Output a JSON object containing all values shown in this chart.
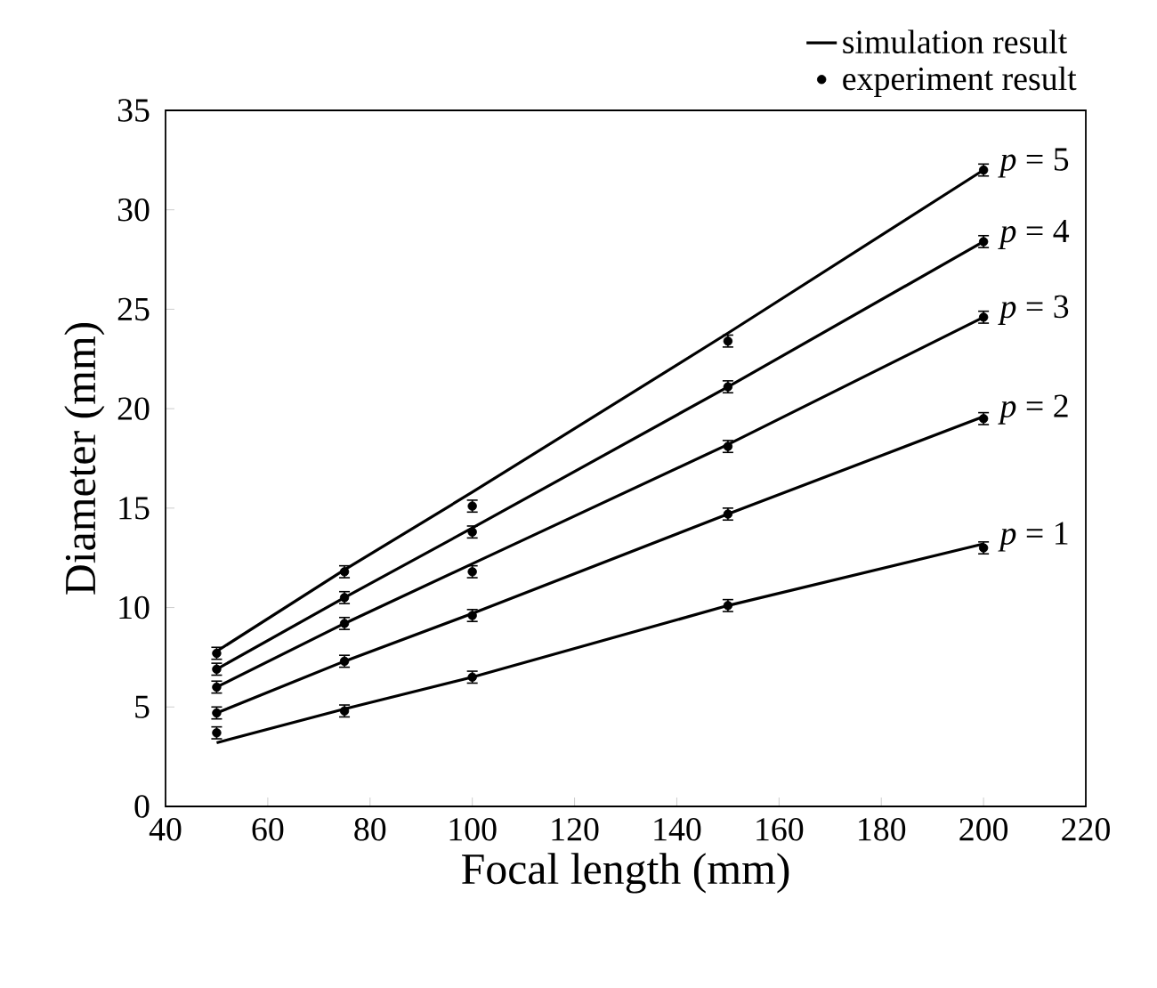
{
  "chart_data": {
    "type": "line",
    "xlabel": "Focal length (mm)",
    "ylabel": "Diameter (mm)",
    "xlim": [
      40,
      220
    ],
    "xticks": [
      40,
      60,
      80,
      100,
      120,
      140,
      160,
      180,
      200,
      220
    ],
    "ylim": [
      0,
      35
    ],
    "yticks": [
      0,
      5,
      10,
      15,
      20,
      25,
      30,
      35
    ],
    "x": [
      50,
      75,
      100,
      150,
      200
    ],
    "legend": "top right",
    "series": [
      {
        "name": "simulation result",
        "marker": "none",
        "color": "#000000",
        "values": [
          3.2,
          4.9,
          6.5,
          10.1,
          13.2
        ]
      },
      {
        "name": "experiment result",
        "type": "scatter",
        "marker": "circle",
        "color": "#000000",
        "values": [
          3.7,
          4.8,
          6.5,
          10.1,
          13.0
        ],
        "errors": [
          0.3,
          0.3,
          0.3,
          0.3,
          0.3
        ]
      },
      {
        "marker": "none",
        "color": "#000000",
        "values": [
          4.7,
          7.3,
          9.7,
          14.7,
          19.6
        ]
      },
      {
        "type": "scatter",
        "marker": "circle",
        "color": "#000000",
        "values": [
          4.7,
          7.3,
          9.6,
          14.7,
          19.5
        ],
        "errors": [
          0.3,
          0.3,
          0.3,
          0.3,
          0.3
        ]
      },
      {
        "marker": "none",
        "color": "#000000",
        "values": [
          6.0,
          9.2,
          12.2,
          18.2,
          24.6
        ]
      },
      {
        "type": "scatter",
        "marker": "circle",
        "color": "#000000",
        "values": [
          6.0,
          9.2,
          11.8,
          18.1,
          24.6
        ],
        "errors": [
          0.3,
          0.3,
          0.3,
          0.3,
          0.3
        ]
      },
      {
        "marker": "none",
        "color": "#000000",
        "values": [
          6.9,
          10.5,
          14.0,
          21.1,
          28.4
        ]
      },
      {
        "type": "scatter",
        "marker": "circle",
        "color": "#000000",
        "values": [
          6.9,
          10.5,
          13.8,
          21.1,
          28.4
        ],
        "errors": [
          0.3,
          0.3,
          0.3,
          0.3,
          0.3
        ]
      },
      {
        "marker": "none",
        "color": "#000000",
        "values": [
          7.8,
          11.9,
          15.8,
          23.8,
          32.0
        ]
      },
      {
        "type": "scatter",
        "marker": "circle",
        "color": "#000000",
        "values": [
          7.7,
          11.8,
          15.1,
          23.4,
          32.0
        ],
        "errors": [
          0.3,
          0.3,
          0.3,
          0.3,
          0.3
        ]
      }
    ],
    "annotations": [
      "*p* = 1",
      "*p* = 2",
      "*p* = 3",
      "*p* = 4",
      "*p* = 5"
    ]
  }
}
